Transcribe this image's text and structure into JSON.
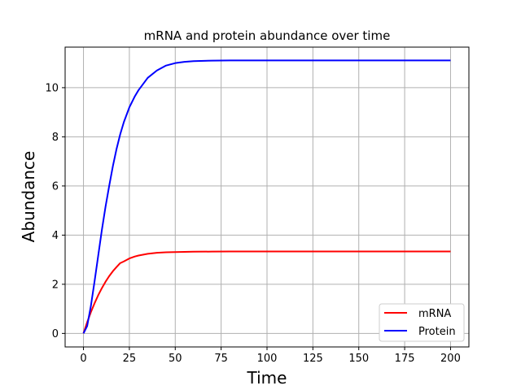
{
  "chart_data": {
    "type": "line",
    "title": "mRNA and protein abundance over time",
    "xlabel": "Time",
    "ylabel": "Abundance",
    "xlim": [
      -10,
      210
    ],
    "ylim": [
      -0.55,
      11.65
    ],
    "xticks": [
      0,
      25,
      50,
      75,
      100,
      125,
      150,
      175,
      200
    ],
    "yticks": [
      0,
      2,
      4,
      6,
      8,
      10
    ],
    "grid": true,
    "legend_position": "lower-right",
    "series": [
      {
        "name": "mRNA",
        "color": "#ff0000",
        "x": [
          0,
          2,
          4,
          6,
          8,
          10,
          12,
          14,
          16,
          18,
          20,
          22,
          25,
          28,
          30,
          35,
          40,
          45,
          50,
          60,
          70,
          80,
          100,
          125,
          150,
          175,
          200
        ],
        "y": [
          0,
          0.45,
          0.86,
          1.22,
          1.55,
          1.84,
          2.1,
          2.33,
          2.53,
          2.7,
          2.86,
          2.93,
          3.05,
          3.13,
          3.17,
          3.24,
          3.28,
          3.3,
          3.31,
          3.325,
          3.33,
          3.333,
          3.333,
          3.333,
          3.333,
          3.333,
          3.333
        ]
      },
      {
        "name": "Protein",
        "color": "#0000ff",
        "x": [
          0,
          2,
          4,
          6,
          8,
          10,
          12,
          14,
          16,
          18,
          20,
          22,
          25,
          28,
          30,
          35,
          40,
          45,
          50,
          55,
          60,
          70,
          80,
          100,
          125,
          150,
          175,
          200
        ],
        "y": [
          0,
          0.3,
          1.1,
          2.1,
          3.15,
          4.2,
          5.15,
          6.0,
          6.8,
          7.5,
          8.1,
          8.6,
          9.2,
          9.65,
          9.9,
          10.4,
          10.7,
          10.9,
          11.0,
          11.05,
          11.08,
          11.1,
          11.11,
          11.11,
          11.11,
          11.11,
          11.11,
          11.11
        ]
      }
    ]
  }
}
